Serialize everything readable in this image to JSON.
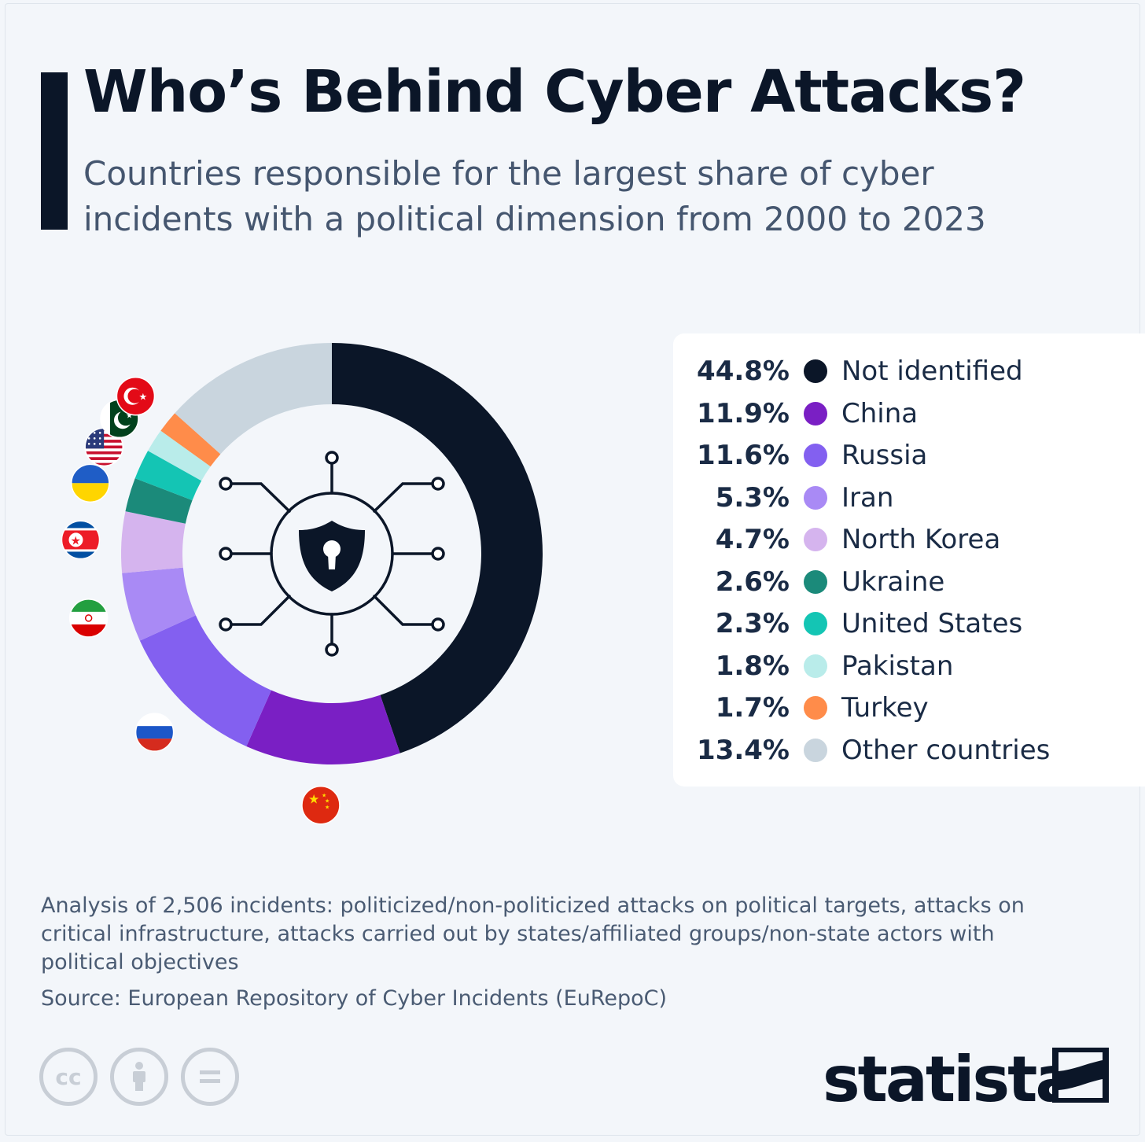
{
  "header": {
    "title": "Who’s Behind Cyber Attacks?",
    "subtitle": "Countries responsible for the largest share of cyber incidents with a political dimension from 2000 to 2023"
  },
  "chart_data": {
    "type": "pie",
    "title": "Who’s Behind Cyber Attacks?",
    "subtitle": "Countries responsible for the largest share of cyber incidents with a political dimension from 2000 to 2023",
    "unit": "%",
    "legend_position": "right",
    "slices": [
      {
        "label": "Not identified",
        "value": 44.8,
        "value_label": "44.8%",
        "color": "#0b1628",
        "flag": null
      },
      {
        "label": "China",
        "value": 11.9,
        "value_label": "11.9%",
        "color": "#7a1fc4",
        "flag": "china-flag-icon"
      },
      {
        "label": "Russia",
        "value": 11.6,
        "value_label": "11.6%",
        "color": "#8360f0",
        "flag": "russia-flag-icon"
      },
      {
        "label": "Iran",
        "value": 5.3,
        "value_label": "5.3%",
        "color": "#a98af5",
        "flag": "iran-flag-icon"
      },
      {
        "label": "North Korea",
        "value": 4.7,
        "value_label": "4.7%",
        "color": "#d5b4ee",
        "flag": "north-korea-flag-icon"
      },
      {
        "label": "Ukraine",
        "value": 2.6,
        "value_label": "2.6%",
        "color": "#1b8a7a",
        "flag": "ukraine-flag-icon"
      },
      {
        "label": "United States",
        "value": 2.3,
        "value_label": "2.3%",
        "color": "#14c5b4",
        "flag": "usa-flag-icon"
      },
      {
        "label": "Pakistan",
        "value": 1.8,
        "value_label": "1.8%",
        "color": "#b9ecea",
        "flag": "pakistan-flag-icon"
      },
      {
        "label": "Turkey",
        "value": 1.7,
        "value_label": "1.7%",
        "color": "#ff8c4a",
        "flag": "turkey-flag-icon"
      },
      {
        "label": "Other countries",
        "value": 13.4,
        "value_label": "13.4%",
        "color": "#c9d5de",
        "flag": null
      }
    ],
    "center_icon": "cyber-security-shield-icon"
  },
  "footer": {
    "note": "Analysis of 2,506 incidents: politicized/non-politicized attacks on political targets, attacks on critical infrastructure, attacks carried out by states/affiliated groups/non-state actors with political objectives",
    "source": "Source: European Repository of Cyber Incidents (EuRepoC)",
    "license_icons": [
      "cc-icon",
      "attribution-icon",
      "no-derivatives-icon"
    ],
    "brand": "statista"
  }
}
